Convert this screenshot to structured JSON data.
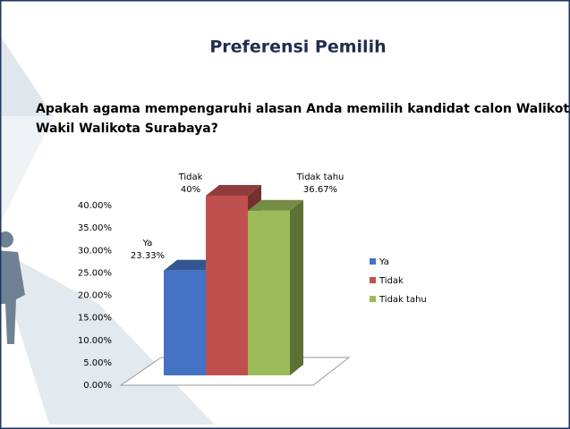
{
  "header": {
    "title": "Preferensi Pemilih"
  },
  "question": [
    "Apakah agama mempengaruhi alasan Anda memilih kandidat calon Walikota dan",
    "Wakil Walikota Surabaya?"
  ],
  "chart_data": {
    "type": "bar3d",
    "categories": [
      "Ya",
      "Tidak",
      "Tidak tahu"
    ],
    "values": [
      23.33,
      40,
      36.67
    ],
    "value_labels": [
      "23.33%",
      "40%",
      "36.67%"
    ],
    "colors": [
      "#4472c4",
      "#c0504d",
      "#9bbb59"
    ],
    "ylim": [
      0,
      40
    ],
    "yticks": [
      {
        "value": 0,
        "label": "0.00%"
      },
      {
        "value": 5,
        "label": "5.00%"
      },
      {
        "value": 10,
        "label": "10.00%"
      },
      {
        "value": 15,
        "label": "15.00%"
      },
      {
        "value": 20,
        "label": "20.00%"
      },
      {
        "value": 25,
        "label": "25.00%"
      },
      {
        "value": 30,
        "label": "30.00%"
      },
      {
        "value": 35,
        "label": "35.00%"
      },
      {
        "value": 40,
        "label": "40.00%"
      }
    ],
    "legend": "right"
  }
}
